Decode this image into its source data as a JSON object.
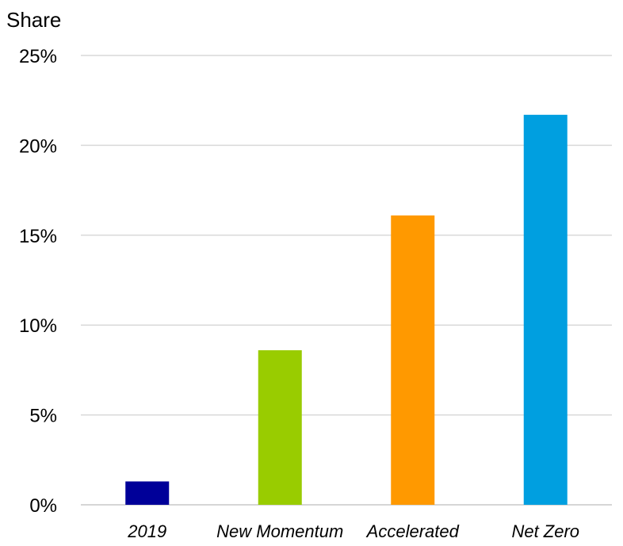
{
  "chart_data": {
    "type": "bar",
    "ylabel": "Share",
    "categories": [
      "2019",
      "New Momentum",
      "Accelerated",
      "Net Zero"
    ],
    "values": [
      1.3,
      8.6,
      16.1,
      21.7
    ],
    "colors": [
      "#000099",
      "#99cc00",
      "#ff9900",
      "#009fe0"
    ],
    "ylim": [
      0,
      25
    ],
    "y_ticks": [
      "0%",
      "5%",
      "10%",
      "15%",
      "20%",
      "25%"
    ],
    "grid": true,
    "legend": "none"
  }
}
